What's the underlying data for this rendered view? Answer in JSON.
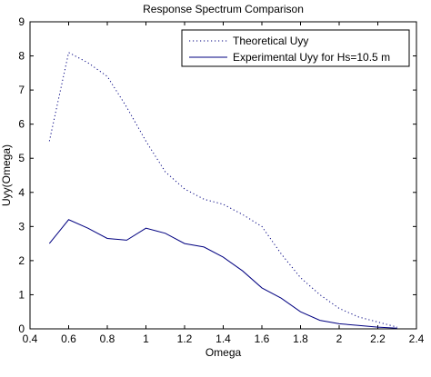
{
  "chart_data": {
    "type": "line",
    "title": "Response Spectrum Comparison",
    "xlabel": "Omega",
    "ylabel": "Uyy(Omega)",
    "xlim": [
      0.4,
      2.4
    ],
    "ylim": [
      0,
      9
    ],
    "xticks": [
      "0.4",
      "0.6",
      "0.8",
      "1",
      "1.2",
      "1.4",
      "1.6",
      "1.8",
      "2",
      "2.2",
      "2.4"
    ],
    "yticks": [
      "0",
      "1",
      "2",
      "3",
      "4",
      "5",
      "6",
      "7",
      "8",
      "9"
    ],
    "legend_position": "top-right",
    "grid": false,
    "series": [
      {
        "name": "Theoretical Uyy",
        "style": "dotted",
        "color": "#000080",
        "x": [
          0.5,
          0.6,
          0.7,
          0.8,
          0.9,
          1.0,
          1.1,
          1.2,
          1.3,
          1.4,
          1.5,
          1.6,
          1.7,
          1.8,
          1.9,
          2.0,
          2.1,
          2.2,
          2.3
        ],
        "y": [
          5.5,
          8.1,
          7.8,
          7.4,
          6.5,
          5.5,
          4.6,
          4.1,
          3.8,
          3.65,
          3.35,
          3.0,
          2.2,
          1.5,
          1.0,
          0.6,
          0.35,
          0.2,
          0.05
        ]
      },
      {
        "name": "Experimental Uyy for Hs=10.5 m",
        "style": "solid",
        "color": "#000080",
        "x": [
          0.5,
          0.6,
          0.7,
          0.8,
          0.9,
          1.0,
          1.1,
          1.2,
          1.3,
          1.4,
          1.5,
          1.6,
          1.7,
          1.8,
          1.9,
          2.0,
          2.1,
          2.2,
          2.3
        ],
        "y": [
          2.5,
          3.2,
          2.95,
          2.65,
          2.6,
          2.95,
          2.8,
          2.5,
          2.4,
          2.1,
          1.7,
          1.2,
          0.9,
          0.5,
          0.25,
          0.15,
          0.1,
          0.05,
          0.02
        ]
      }
    ]
  }
}
